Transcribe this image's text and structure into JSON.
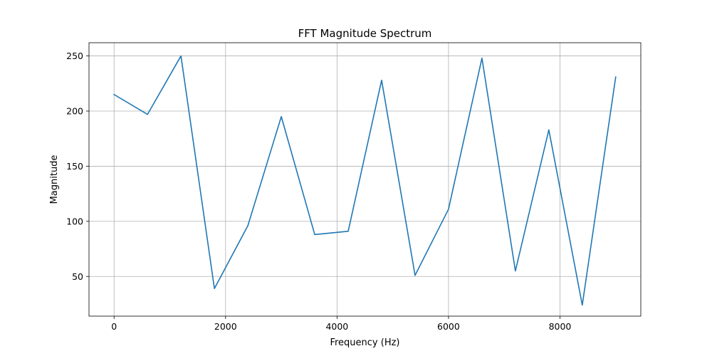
{
  "chart_data": {
    "type": "line",
    "title": "FFT Magnitude Spectrum",
    "xlabel": "Frequency (Hz)",
    "ylabel": "Magnitude",
    "xlim": [
      -450,
      9450
    ],
    "ylim": [
      14,
      262
    ],
    "x_ticks": [
      0,
      2000,
      4000,
      6000,
      8000
    ],
    "x_tick_labels": [
      "0",
      "2000",
      "4000",
      "6000",
      "8000"
    ],
    "y_ticks": [
      50,
      100,
      150,
      200,
      250
    ],
    "y_tick_labels": [
      "50",
      "100",
      "150",
      "200",
      "250"
    ],
    "grid": true,
    "line_color": "#1f77b4",
    "series": [
      {
        "x": [
          0,
          600,
          1200,
          1800,
          2400,
          3000,
          3600,
          4200,
          4800,
          5400,
          6000,
          6600,
          7200,
          7800,
          8400,
          9000
        ],
        "values": [
          215,
          197,
          250,
          39,
          96,
          195,
          88,
          91,
          228,
          51,
          111,
          248,
          55,
          183,
          24,
          231
        ]
      }
    ]
  }
}
